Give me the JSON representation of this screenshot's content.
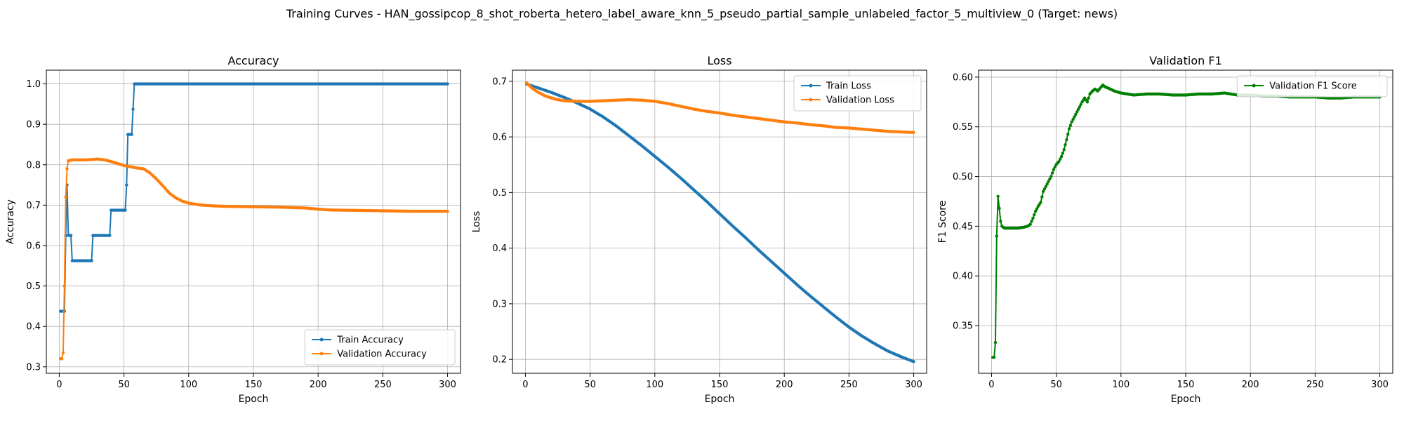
{
  "suptitle": "Training Curves - HAN_gossipcop_8_shot_roberta_hetero_label_aware_knn_5_pseudo_partial_sample_unlabeled_factor_5_multiview_0 (Target: news)",
  "colors": {
    "train": "#1f77b4",
    "val": "#ff7f0e",
    "f1": "#008000",
    "grid": "#b0b0b0"
  },
  "chart_data": [
    {
      "type": "line",
      "title": "Accuracy",
      "xlabel": "Epoch",
      "ylabel": "Accuracy",
      "xlim": [
        -10,
        310
      ],
      "ylim": [
        0.284,
        1.034
      ],
      "xticks": [
        0,
        50,
        100,
        150,
        200,
        250,
        300
      ],
      "yticks": [
        0.3,
        0.4,
        0.5,
        0.6,
        0.7,
        0.8,
        0.9,
        1.0
      ],
      "ytick_labels": [
        "0.3",
        "0.4",
        "0.5",
        "0.6",
        "0.7",
        "0.8",
        "0.9",
        "1.0"
      ],
      "grid": true,
      "legend": "lower right",
      "series": [
        {
          "name": "Train Accuracy",
          "color": "#1f77b4",
          "points": [
            [
              1,
              0.4375
            ],
            [
              2,
              0.4375
            ],
            [
              3,
              0.4375
            ],
            [
              4,
              0.4375
            ],
            [
              5,
              0.625
            ],
            [
              6,
              0.75
            ],
            [
              7,
              0.625
            ],
            [
              8,
              0.625
            ],
            [
              9,
              0.625
            ],
            [
              10,
              0.5625
            ],
            [
              15,
              0.5625
            ],
            [
              20,
              0.5625
            ],
            [
              25,
              0.5625
            ],
            [
              26,
              0.625
            ],
            [
              30,
              0.625
            ],
            [
              35,
              0.625
            ],
            [
              39,
              0.625
            ],
            [
              40,
              0.6875
            ],
            [
              45,
              0.6875
            ],
            [
              50,
              0.6875
            ],
            [
              51,
              0.6875
            ],
            [
              52,
              0.75
            ],
            [
              53,
              0.875
            ],
            [
              55,
              0.875
            ],
            [
              56,
              0.875
            ],
            [
              57,
              0.9375
            ],
            [
              58,
              1.0
            ],
            [
              60,
              1.0
            ],
            [
              100,
              1.0
            ],
            [
              150,
              1.0
            ],
            [
              200,
              1.0
            ],
            [
              250,
              1.0
            ],
            [
              300,
              1.0
            ]
          ]
        },
        {
          "name": "Validation Accuracy",
          "color": "#ff7f0e",
          "points": [
            [
              1,
              0.32
            ],
            [
              2,
              0.32
            ],
            [
              3,
              0.335
            ],
            [
              4,
              0.5
            ],
            [
              5,
              0.72
            ],
            [
              6,
              0.79
            ],
            [
              7,
              0.81
            ],
            [
              10,
              0.812
            ],
            [
              20,
              0.812
            ],
            [
              30,
              0.814
            ],
            [
              35,
              0.812
            ],
            [
              40,
              0.808
            ],
            [
              45,
              0.803
            ],
            [
              50,
              0.798
            ],
            [
              55,
              0.795
            ],
            [
              60,
              0.792
            ],
            [
              65,
              0.79
            ],
            [
              70,
              0.78
            ],
            [
              75,
              0.765
            ],
            [
              80,
              0.748
            ],
            [
              85,
              0.73
            ],
            [
              90,
              0.718
            ],
            [
              95,
              0.71
            ],
            [
              100,
              0.705
            ],
            [
              110,
              0.7
            ],
            [
              120,
              0.698
            ],
            [
              130,
              0.697
            ],
            [
              150,
              0.696
            ],
            [
              170,
              0.695
            ],
            [
              190,
              0.693
            ],
            [
              200,
              0.69
            ],
            [
              210,
              0.688
            ],
            [
              230,
              0.687
            ],
            [
              250,
              0.686
            ],
            [
              270,
              0.685
            ],
            [
              290,
              0.685
            ],
            [
              300,
              0.685
            ]
          ]
        }
      ]
    },
    {
      "type": "line",
      "title": "Loss",
      "xlabel": "Epoch",
      "ylabel": "Loss",
      "xlim": [
        -10,
        310
      ],
      "ylim": [
        0.175,
        0.72
      ],
      "xticks": [
        0,
        50,
        100,
        150,
        200,
        250,
        300
      ],
      "yticks": [
        0.2,
        0.3,
        0.4,
        0.5,
        0.6,
        0.7
      ],
      "ytick_labels": [
        "0.2",
        "0.3",
        "0.4",
        "0.5",
        "0.6",
        "0.7"
      ],
      "grid": true,
      "legend": "upper right",
      "series": [
        {
          "name": "Train Loss",
          "color": "#1f77b4",
          "points": [
            [
              1,
              0.695
            ],
            [
              10,
              0.688
            ],
            [
              20,
              0.68
            ],
            [
              30,
              0.671
            ],
            [
              40,
              0.661
            ],
            [
              50,
              0.65
            ],
            [
              60,
              0.636
            ],
            [
              70,
              0.62
            ],
            [
              80,
              0.602
            ],
            [
              90,
              0.584
            ],
            [
              100,
              0.565
            ],
            [
              110,
              0.546
            ],
            [
              120,
              0.526
            ],
            [
              130,
              0.505
            ],
            [
              140,
              0.484
            ],
            [
              150,
              0.462
            ],
            [
              160,
              0.44
            ],
            [
              170,
              0.419
            ],
            [
              180,
              0.397
            ],
            [
              190,
              0.376
            ],
            [
              200,
              0.355
            ],
            [
              210,
              0.334
            ],
            [
              220,
              0.314
            ],
            [
              230,
              0.295
            ],
            [
              240,
              0.276
            ],
            [
              250,
              0.258
            ],
            [
              260,
              0.242
            ],
            [
              270,
              0.228
            ],
            [
              280,
              0.215
            ],
            [
              290,
              0.205
            ],
            [
              300,
              0.196
            ]
          ]
        },
        {
          "name": "Validation Loss",
          "color": "#ff7f0e",
          "points": [
            [
              1,
              0.697
            ],
            [
              5,
              0.688
            ],
            [
              10,
              0.68
            ],
            [
              15,
              0.674
            ],
            [
              20,
              0.67
            ],
            [
              25,
              0.667
            ],
            [
              30,
              0.665
            ],
            [
              40,
              0.664
            ],
            [
              50,
              0.664
            ],
            [
              60,
              0.665
            ],
            [
              70,
              0.666
            ],
            [
              80,
              0.667
            ],
            [
              90,
              0.666
            ],
            [
              100,
              0.664
            ],
            [
              110,
              0.66
            ],
            [
              120,
              0.655
            ],
            [
              130,
              0.65
            ],
            [
              140,
              0.646
            ],
            [
              150,
              0.643
            ],
            [
              160,
              0.639
            ],
            [
              170,
              0.636
            ],
            [
              180,
              0.633
            ],
            [
              190,
              0.63
            ],
            [
              200,
              0.627
            ],
            [
              210,
              0.625
            ],
            [
              220,
              0.622
            ],
            [
              230,
              0.62
            ],
            [
              240,
              0.617
            ],
            [
              250,
              0.616
            ],
            [
              260,
              0.614
            ],
            [
              270,
              0.612
            ],
            [
              280,
              0.61
            ],
            [
              290,
              0.609
            ],
            [
              300,
              0.608
            ]
          ]
        }
      ]
    },
    {
      "type": "line",
      "title": "Validation F1",
      "xlabel": "Epoch",
      "ylabel": "F1 Score",
      "xlim": [
        -10,
        310
      ],
      "ylim": [
        0.302,
        0.607
      ],
      "xticks": [
        0,
        50,
        100,
        150,
        200,
        250,
        300
      ],
      "yticks": [
        0.35,
        0.4,
        0.45,
        0.5,
        0.55,
        0.6
      ],
      "ytick_labels": [
        "0.35",
        "0.40",
        "0.45",
        "0.50",
        "0.55",
        "0.60"
      ],
      "grid": true,
      "legend": "upper right",
      "series": [
        {
          "name": "Validation F1 Score",
          "color": "#008000",
          "points": [
            [
              1,
              0.318
            ],
            [
              2,
              0.318
            ],
            [
              3,
              0.333
            ],
            [
              4,
              0.44
            ],
            [
              5,
              0.48
            ],
            [
              6,
              0.468
            ],
            [
              7,
              0.455
            ],
            [
              8,
              0.45
            ],
            [
              10,
              0.448
            ],
            [
              15,
              0.448
            ],
            [
              20,
              0.448
            ],
            [
              25,
              0.449
            ],
            [
              28,
              0.45
            ],
            [
              30,
              0.452
            ],
            [
              32,
              0.458
            ],
            [
              34,
              0.465
            ],
            [
              36,
              0.47
            ],
            [
              38,
              0.474
            ],
            [
              40,
              0.485
            ],
            [
              42,
              0.49
            ],
            [
              44,
              0.495
            ],
            [
              46,
              0.5
            ],
            [
              48,
              0.507
            ],
            [
              50,
              0.512
            ],
            [
              52,
              0.515
            ],
            [
              54,
              0.52
            ],
            [
              56,
              0.527
            ],
            [
              58,
              0.537
            ],
            [
              60,
              0.548
            ],
            [
              62,
              0.555
            ],
            [
              64,
              0.56
            ],
            [
              66,
              0.565
            ],
            [
              68,
              0.57
            ],
            [
              70,
              0.575
            ],
            [
              72,
              0.579
            ],
            [
              74,
              0.575
            ],
            [
              76,
              0.583
            ],
            [
              78,
              0.586
            ],
            [
              80,
              0.588
            ],
            [
              82,
              0.586
            ],
            [
              84,
              0.589
            ],
            [
              86,
              0.592
            ],
            [
              88,
              0.59
            ],
            [
              90,
              0.589
            ],
            [
              95,
              0.586
            ],
            [
              100,
              0.584
            ],
            [
              105,
              0.583
            ],
            [
              110,
              0.582
            ],
            [
              120,
              0.583
            ],
            [
              130,
              0.583
            ],
            [
              140,
              0.582
            ],
            [
              150,
              0.582
            ],
            [
              160,
              0.583
            ],
            [
              170,
              0.583
            ],
            [
              180,
              0.584
            ],
            [
              190,
              0.582
            ],
            [
              200,
              0.582
            ],
            [
              210,
              0.581
            ],
            [
              220,
              0.581
            ],
            [
              230,
              0.58
            ],
            [
              240,
              0.58
            ],
            [
              250,
              0.58
            ],
            [
              260,
              0.579
            ],
            [
              270,
              0.579
            ],
            [
              280,
              0.58
            ],
            [
              290,
              0.58
            ],
            [
              300,
              0.58
            ]
          ]
        }
      ]
    }
  ]
}
